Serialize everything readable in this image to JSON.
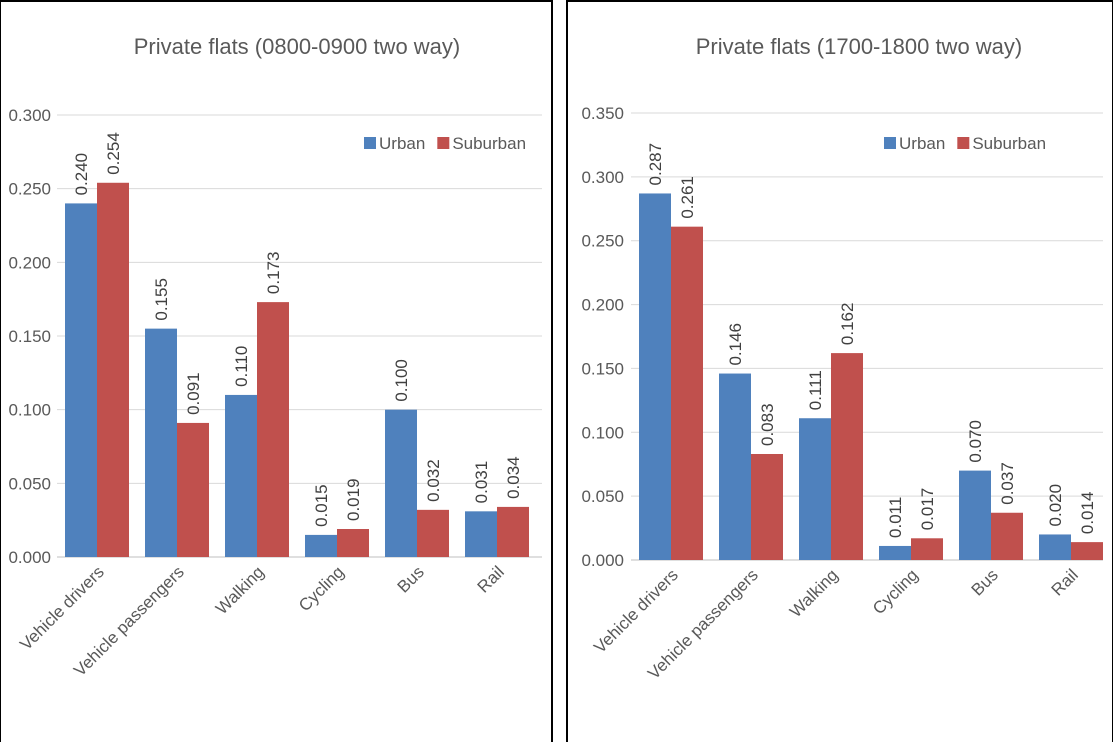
{
  "colors": {
    "urban": "#4f81bd",
    "suburban": "#c0504d",
    "gridline": "#d9d9d9",
    "text": "#595959"
  },
  "chart_data": [
    {
      "type": "bar",
      "title": "Private flats (0800-0900 two way)",
      "categories": [
        "Vehicle drivers",
        "Vehicle passengers",
        "Walking",
        "Cycling",
        "Bus",
        "Rail"
      ],
      "series": [
        {
          "name": "Urban",
          "values": [
            0.24,
            0.155,
            0.11,
            0.015,
            0.1,
            0.031
          ]
        },
        {
          "name": "Suburban",
          "values": [
            0.254,
            0.091,
            0.173,
            0.019,
            0.032,
            0.034
          ]
        }
      ],
      "data_labels": [
        [
          "0.240",
          "0.155",
          "0.110",
          "0.015",
          "0.100",
          "0.031"
        ],
        [
          "0.254",
          "0.091",
          "0.173",
          "0.019",
          "0.032",
          "0.034"
        ]
      ],
      "ylim": [
        0,
        0.3
      ],
      "yticks": [
        "0.000",
        "0.050",
        "0.100",
        "0.150",
        "0.200",
        "0.250",
        "0.300"
      ],
      "grid": true,
      "legend": "top-right"
    },
    {
      "type": "bar",
      "title": "Private flats (1700-1800 two way)",
      "categories": [
        "Vehicle drivers",
        "Vehicle passengers",
        "Walking",
        "Cycling",
        "Bus",
        "Rail"
      ],
      "series": [
        {
          "name": "Urban",
          "values": [
            0.287,
            0.146,
            0.111,
            0.011,
            0.07,
            0.02
          ]
        },
        {
          "name": "Suburban",
          "values": [
            0.261,
            0.083,
            0.162,
            0.017,
            0.037,
            0.014
          ]
        }
      ],
      "data_labels": [
        [
          "0.287",
          "0.146",
          "0.111",
          "0.011",
          "0.070",
          "0.020"
        ],
        [
          "0.261",
          "0.083",
          "0.162",
          "0.017",
          "0.037",
          "0.014"
        ]
      ],
      "ylim": [
        0,
        0.35
      ],
      "yticks": [
        "0.000",
        "0.050",
        "0.100",
        "0.150",
        "0.200",
        "0.250",
        "0.300",
        "0.350"
      ],
      "grid": true,
      "legend": "top-right"
    }
  ]
}
